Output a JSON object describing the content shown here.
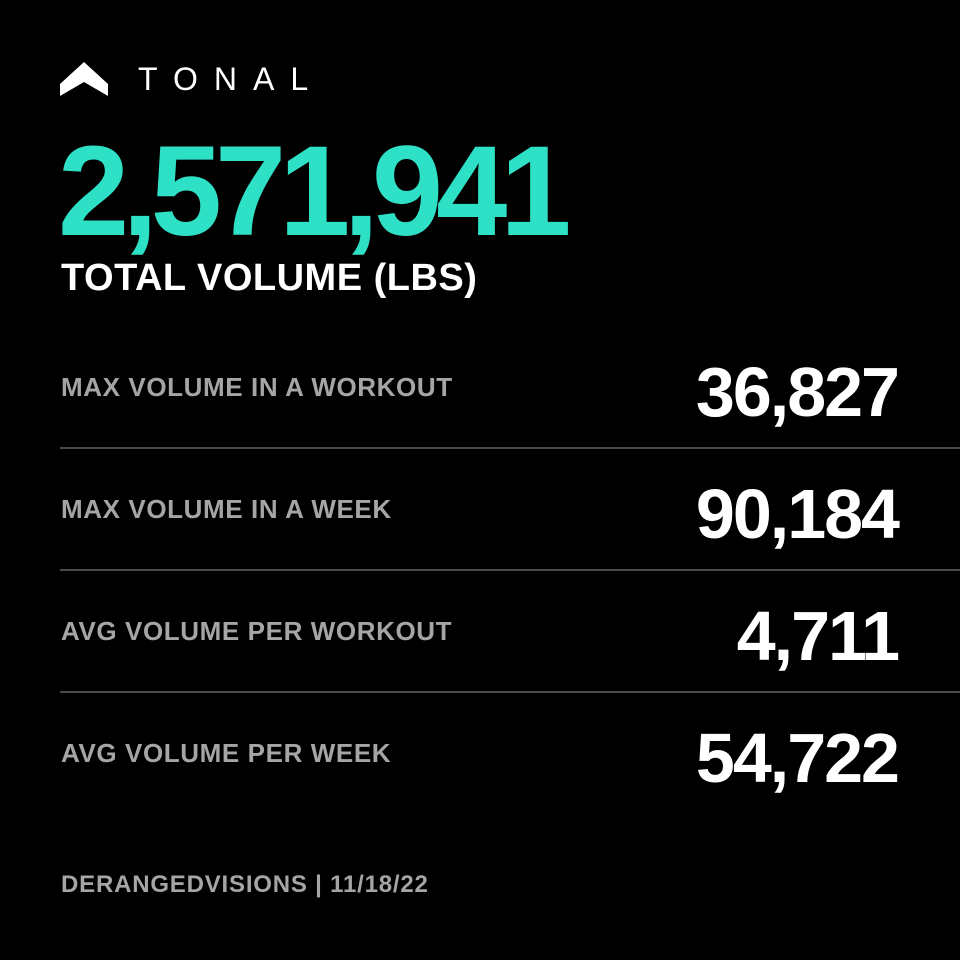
{
  "colors": {
    "background": "#000000",
    "accent": "#2ee0c6",
    "primary_text": "#ffffff",
    "secondary_text": "#a5a5a5",
    "divider": "#4a4a4a"
  },
  "brand": {
    "icon": "tonal-logo-icon",
    "name": "TONAL"
  },
  "total": {
    "value": "2,571,941",
    "label": "TOTAL VOLUME (LBS)"
  },
  "stats": [
    {
      "label": "MAX VOLUME IN A WORKOUT",
      "value": "36,827"
    },
    {
      "label": "MAX VOLUME IN A WEEK",
      "value": "90,184"
    },
    {
      "label": "AVG VOLUME PER WORKOUT",
      "value": "4,711"
    },
    {
      "label": "AVG VOLUME PER WEEK",
      "value": "54,722"
    }
  ],
  "footer": {
    "text": "DERANGEDVISIONS | 11/18/22"
  }
}
